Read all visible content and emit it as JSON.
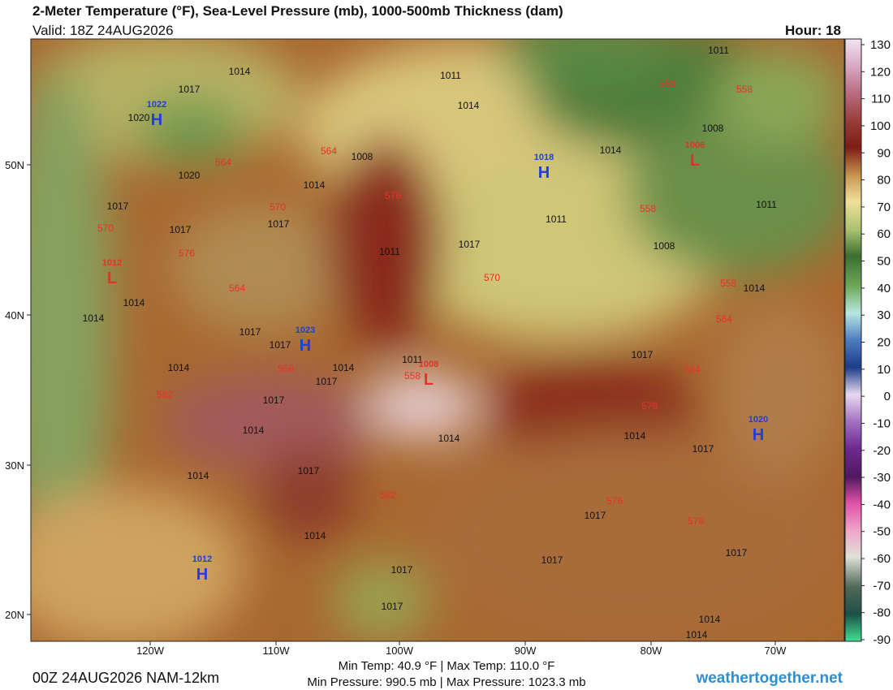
{
  "header": {
    "title": "2-Meter Temperature (°F), Sea-Level Pressure (mb), 1000-500mb Thickness (dam)",
    "valid": "Valid: 18Z 24AUG2026",
    "hour": "Hour: 18"
  },
  "colorbar": {
    "ticks": [
      130,
      120,
      110,
      100,
      90,
      80,
      70,
      60,
      50,
      40,
      30,
      20,
      10,
      0,
      -10,
      -20,
      -30,
      -40,
      -50,
      -60,
      -70,
      -80,
      -90
    ]
  },
  "axes": {
    "lon_labels": [
      "120W",
      "110W",
      "100W",
      "90W",
      "80W",
      "70W"
    ],
    "lat_labels": [
      "50N",
      "40N",
      "30N",
      "20N"
    ]
  },
  "pressure_centers": [
    {
      "symbol": "H",
      "value": "1022"
    },
    {
      "symbol": "H",
      "value": "1018"
    },
    {
      "symbol": "L",
      "value": "1006"
    },
    {
      "symbol": "L",
      "value": "1012"
    },
    {
      "symbol": "H",
      "value": "1023"
    },
    {
      "symbol": "L",
      "value": "1008"
    },
    {
      "symbol": "H",
      "value": "1020"
    },
    {
      "symbol": "H",
      "value": "1012"
    }
  ],
  "isobar_labels": [
    "1014",
    "1017",
    "1020",
    "1011",
    "1014",
    "1008",
    "1014",
    "1020",
    "1017",
    "1017",
    "1017",
    "1011",
    "1017",
    "1011",
    "1008",
    "1014",
    "1008",
    "1011",
    "1011",
    "1014",
    "1014",
    "1014",
    "1017",
    "1017",
    "1014",
    "1011",
    "1017",
    "1014",
    "1017",
    "1014",
    "1017",
    "1014",
    "1014",
    "1017",
    "1017",
    "1014",
    "1017",
    "1014",
    "1017",
    "1017",
    "1017",
    "1017",
    "1014",
    "1014"
  ],
  "thickness_labels": [
    "558",
    "558",
    "564",
    "564",
    "576",
    "570",
    "570",
    "576",
    "558",
    "570",
    "558",
    "564",
    "564",
    "558",
    "558",
    "564",
    "582",
    "576",
    "582",
    "576",
    "576"
  ],
  "footer": {
    "run": "00Z 24AUG2026 NAM-12km",
    "temps": "Min Temp:  40.9 °F | Max Temp: 110.0 °F",
    "pressures": "Min Pressure: 990.5 mb | Max Pressure: 1023.3 mb",
    "site": "weathertogether.net"
  }
}
